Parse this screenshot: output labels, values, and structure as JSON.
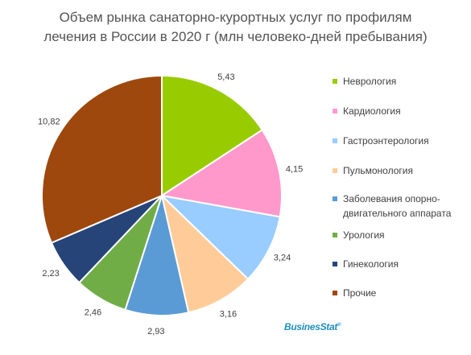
{
  "title_line1": "Объем рынка санаторно-курортных услуг по профилям",
  "title_line2": "лечения в России в 2020 г (млн человеко-дней пребывания)",
  "logo_text": "BusinesStat",
  "chart_data": {
    "type": "pie",
    "title": "Объем рынка санаторно-курортных услуг по профилям лечения в России в 2020 г (млн человеко-дней пребывания)",
    "start": "12 o'clock, clockwise",
    "legend_position": "right",
    "slices": [
      {
        "label": "Неврология",
        "value": 5.43,
        "value_text": "5,43",
        "color": "#99cc00"
      },
      {
        "label": "Кардиология",
        "value": 4.15,
        "value_text": "4,15",
        "color": "#ff99cc"
      },
      {
        "label": "Гастроэнтерология",
        "value": 3.24,
        "value_text": "3,24",
        "color": "#99ccff"
      },
      {
        "label": "Пульмонология",
        "value": 3.16,
        "value_text": "3,16",
        "color": "#ffcc99"
      },
      {
        "label": "Заболевания опорно-\nдвигательного аппарата",
        "value": 2.93,
        "value_text": "2,93",
        "color": "#5b9bd5"
      },
      {
        "label": "Урология",
        "value": 2.46,
        "value_text": "2,46",
        "color": "#70ad47"
      },
      {
        "label": "Гинекология",
        "value": 2.23,
        "value_text": "2,23",
        "color": "#264478"
      },
      {
        "label": "Прочие",
        "value": 10.82,
        "value_text": "10,82",
        "color": "#9e480e"
      }
    ]
  }
}
